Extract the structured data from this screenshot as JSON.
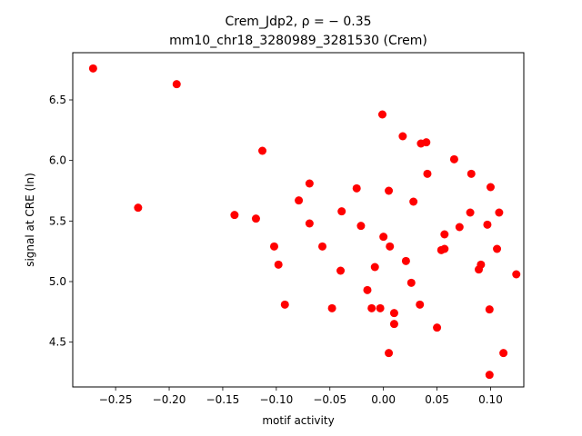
{
  "chart_data": {
    "type": "scatter",
    "title_line1": "Crem_Jdp2, ρ = − 0.35",
    "title_line2": "mm10_chr18_3280989_3281530 (Crem)",
    "xlabel": "motif activity",
    "ylabel": "signal at CRE (ln)",
    "xlim": [
      -0.29,
      0.131
    ],
    "ylim": [
      4.13,
      6.89
    ],
    "xticks": [
      -0.25,
      -0.2,
      -0.15,
      -0.1,
      -0.05,
      0.0,
      0.05,
      0.1
    ],
    "xtick_labels": [
      "−0.25",
      "−0.20",
      "−0.15",
      "−0.10",
      "−0.05",
      "0.00",
      "0.05",
      "0.10"
    ],
    "yticks": [
      4.5,
      5.0,
      5.5,
      6.0,
      6.5
    ],
    "ytick_labels": [
      "4.5",
      "5.0",
      "5.5",
      "6.0",
      "6.5"
    ],
    "grid": false,
    "legend": "none",
    "marker_color": "#ff0000",
    "points": [
      {
        "x": -0.271,
        "y": 6.76
      },
      {
        "x": -0.229,
        "y": 5.61
      },
      {
        "x": -0.193,
        "y": 6.63
      },
      {
        "x": -0.139,
        "y": 5.55
      },
      {
        "x": -0.119,
        "y": 5.52
      },
      {
        "x": -0.113,
        "y": 6.08
      },
      {
        "x": -0.102,
        "y": 5.29
      },
      {
        "x": -0.098,
        "y": 5.14
      },
      {
        "x": -0.092,
        "y": 4.81
      },
      {
        "x": -0.079,
        "y": 5.67
      },
      {
        "x": -0.069,
        "y": 5.81
      },
      {
        "x": -0.069,
        "y": 5.48
      },
      {
        "x": -0.057,
        "y": 5.29
      },
      {
        "x": -0.048,
        "y": 4.78
      },
      {
        "x": -0.039,
        "y": 5.58
      },
      {
        "x": -0.04,
        "y": 5.09
      },
      {
        "x": -0.025,
        "y": 5.77
      },
      {
        "x": -0.021,
        "y": 5.46
      },
      {
        "x": -0.015,
        "y": 4.93
      },
      {
        "x": -0.011,
        "y": 4.78
      },
      {
        "x": -0.008,
        "y": 5.12
      },
      {
        "x": -0.003,
        "y": 4.78
      },
      {
        "x": -0.001,
        "y": 6.38
      },
      {
        "x": 0.0,
        "y": 5.37
      },
      {
        "x": 0.005,
        "y": 5.75
      },
      {
        "x": 0.006,
        "y": 5.29
      },
      {
        "x": 0.005,
        "y": 4.41
      },
      {
        "x": 0.01,
        "y": 4.74
      },
      {
        "x": 0.01,
        "y": 4.65
      },
      {
        "x": 0.018,
        "y": 6.2
      },
      {
        "x": 0.021,
        "y": 5.17
      },
      {
        "x": 0.026,
        "y": 4.99
      },
      {
        "x": 0.028,
        "y": 5.66
      },
      {
        "x": 0.034,
        "y": 4.81
      },
      {
        "x": 0.035,
        "y": 6.14
      },
      {
        "x": 0.04,
        "y": 6.15
      },
      {
        "x": 0.041,
        "y": 5.89
      },
      {
        "x": 0.05,
        "y": 4.62
      },
      {
        "x": 0.054,
        "y": 5.26
      },
      {
        "x": 0.057,
        "y": 5.39
      },
      {
        "x": 0.057,
        "y": 5.27
      },
      {
        "x": 0.066,
        "y": 6.01
      },
      {
        "x": 0.071,
        "y": 5.45
      },
      {
        "x": 0.081,
        "y": 5.57
      },
      {
        "x": 0.082,
        "y": 5.89
      },
      {
        "x": 0.089,
        "y": 5.1
      },
      {
        "x": 0.091,
        "y": 5.14
      },
      {
        "x": 0.097,
        "y": 5.47
      },
      {
        "x": 0.099,
        "y": 4.77
      },
      {
        "x": 0.1,
        "y": 5.78
      },
      {
        "x": 0.099,
        "y": 4.23
      },
      {
        "x": 0.106,
        "y": 5.27
      },
      {
        "x": 0.108,
        "y": 5.57
      },
      {
        "x": 0.112,
        "y": 4.41
      },
      {
        "x": 0.124,
        "y": 5.06
      }
    ]
  }
}
